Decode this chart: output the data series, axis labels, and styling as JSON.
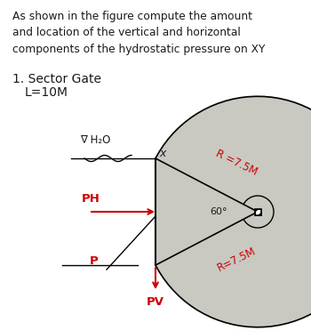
{
  "title_text": "As shown in the figure compute the amount\nand location of the vertical and horizontal\ncomponents of the hydrostatic pressure on XY",
  "subtitle1": "1. Sector Gate",
  "subtitle2": "L=10M",
  "label_H2O": "∇ H₂O",
  "label_X": "x",
  "label_PH": "PH",
  "label_P": "P",
  "label_PV": "PV",
  "label_R1": "R =7.5M",
  "label_R2": "R=7.5M",
  "label_angle": "60°",
  "bg_color": "#ffffff",
  "text_color": "#1a1a1a",
  "red_color": "#cc0000",
  "gate_fill": "#c0c0b8",
  "gate_fill_alpha": 0.85
}
